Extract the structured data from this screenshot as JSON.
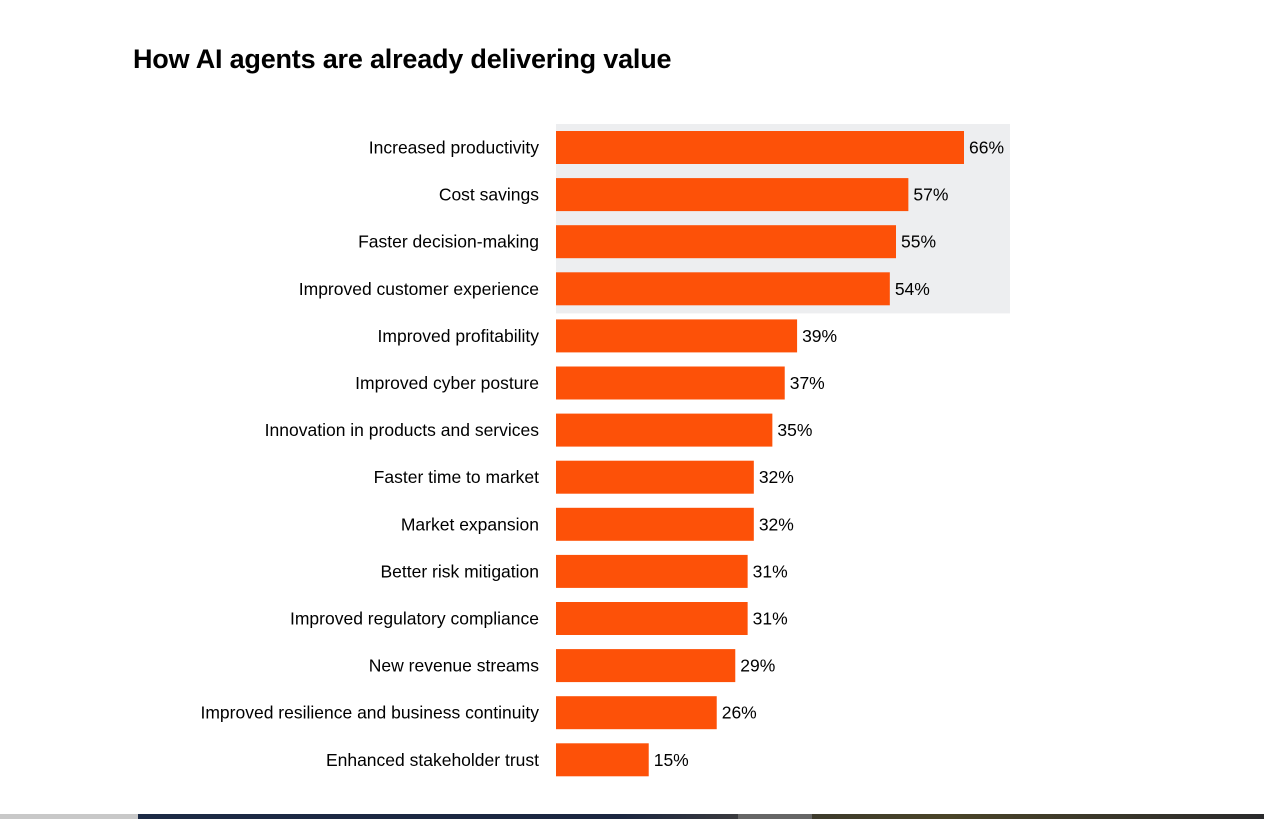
{
  "chart_data": {
    "type": "bar",
    "orientation": "horizontal",
    "title": "How AI agents are already delivering value",
    "categories": [
      "Increased productivity",
      "Cost savings",
      "Faster decision-making",
      "Improved customer experience",
      "Improved profitability",
      "Improved cyber posture",
      "Innovation in products and services",
      "Faster time to market",
      "Market expansion",
      "Better risk mitigation",
      "Improved regulatory compliance",
      "New revenue streams",
      "Improved resilience and business continuity",
      "Enhanced stakeholder trust"
    ],
    "values": [
      66,
      57,
      55,
      54,
      39,
      37,
      35,
      32,
      32,
      31,
      31,
      29,
      26,
      15
    ],
    "value_suffix": "%",
    "highlighted_top": 4,
    "xlim": [
      0,
      100
    ],
    "grid": false,
    "bar_color": "#FD5108",
    "highlight_color": "#EDEEF0"
  }
}
